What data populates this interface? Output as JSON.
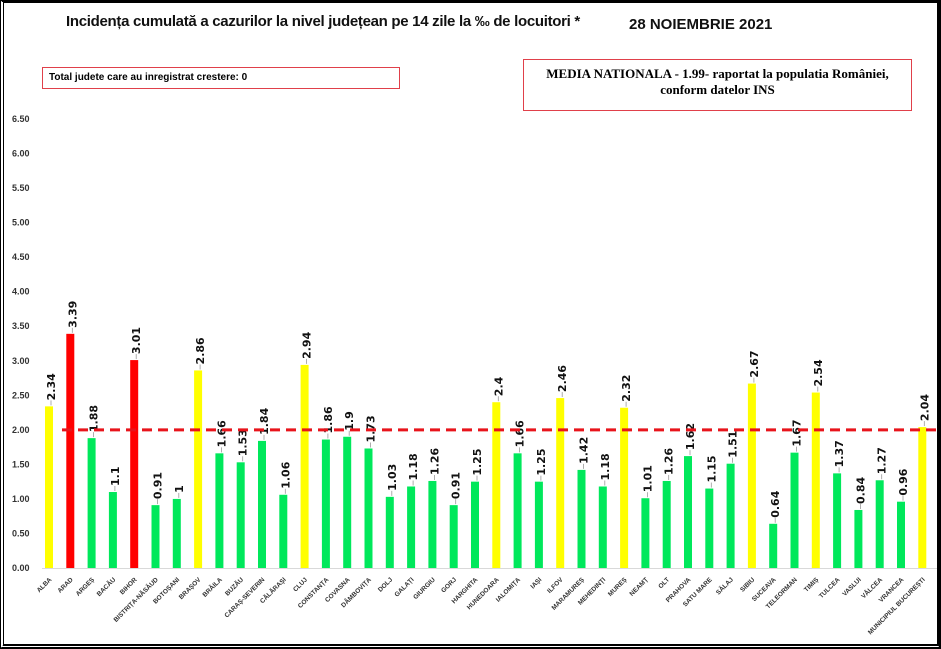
{
  "header": {
    "title": "Incidența cumulată a cazurilor la nivel județean pe 14 zile la ‰ de locuitori *",
    "date": "28 NOIEMBRIE 2021"
  },
  "notes": {
    "left": "Total judete care au inregistrat crestere: 0",
    "right_line1": "MEDIA NATIONALA - 1.99-  raportat la populatia României,",
    "right_line2": "conform datelor INS"
  },
  "chart_data": {
    "type": "bar",
    "ylim": [
      0,
      6.5
    ],
    "yticks": [
      "0.00",
      "0.50",
      "1.00",
      "1.50",
      "2.00",
      "2.50",
      "3.00",
      "3.50",
      "4.00",
      "4.50",
      "5.00",
      "5.50",
      "6.00",
      "6.50"
    ],
    "reference_line": {
      "value": 2.0,
      "style": "dashed",
      "color": "#e8141b"
    },
    "colors": {
      "red": "#ff0000",
      "yellow": "#ffff00",
      "green": "#00e85b"
    },
    "grid": false,
    "categories": [
      "ALBA",
      "ARAD",
      "ARGEȘ",
      "BACĂU",
      "BIHOR",
      "BISTRIȚA-NĂSĂUD",
      "BOTOȘANI",
      "BRAȘOV",
      "BRĂILA",
      "BUZĂU",
      "CARAȘ-SEVERIN",
      "CĂLĂRAȘI",
      "CLUJ",
      "CONSTANȚA",
      "COVASNA",
      "DÂMBOVIȚA",
      "DOLJ",
      "GALAȚI",
      "GIURGIU",
      "GORJ",
      "HARGHITA",
      "HUNEDOARA",
      "IALOMIȚA",
      "IAȘI",
      "ILFOV",
      "MARAMUREȘ",
      "MEHEDINȚI",
      "MUREȘ",
      "NEAMȚ",
      "OLT",
      "PRAHOVA",
      "SATU MARE",
      "SĂLAJ",
      "SIBIU",
      "SUCEAVA",
      "TELEORMAN",
      "TIMIȘ",
      "TULCEA",
      "VASLUI",
      "VÂLCEA",
      "VRANCEA",
      "MUNICIPIUL BUCUREȘTI"
    ],
    "values": [
      2.34,
      3.39,
      1.88,
      1.1,
      3.01,
      0.91,
      1,
      2.86,
      1.66,
      1.53,
      1.84,
      1.06,
      2.94,
      1.86,
      1.9,
      1.73,
      1.03,
      1.18,
      1.26,
      0.91,
      1.25,
      2.4,
      1.66,
      1.25,
      2.46,
      1.42,
      1.18,
      2.32,
      1.01,
      1.26,
      1.62,
      1.15,
      1.51,
      2.67,
      0.64,
      1.67,
      2.54,
      1.37,
      0.84,
      1.27,
      0.96,
      2.04
    ],
    "data_labels": [
      "2.34",
      "3.39",
      "1.88",
      "1.1",
      "3.01",
      "0.91",
      "1",
      "2.86",
      "1.66",
      "1.53",
      "1.84",
      "1.06",
      "2.94",
      "1.86",
      "1.9",
      "1.73",
      "1.03",
      "1.18",
      "1.26",
      "0.91",
      "1.25",
      "2.4",
      "1.66",
      "1.25",
      "2.46",
      "1.42",
      "1.18",
      "2.32",
      "1.01",
      "1.26",
      "1.62",
      "1.15",
      "1.51",
      "2.67",
      "0.64",
      "1.67",
      "2.54",
      "1.37",
      "0.84",
      "1.27",
      "0.96",
      "2.04"
    ]
  }
}
